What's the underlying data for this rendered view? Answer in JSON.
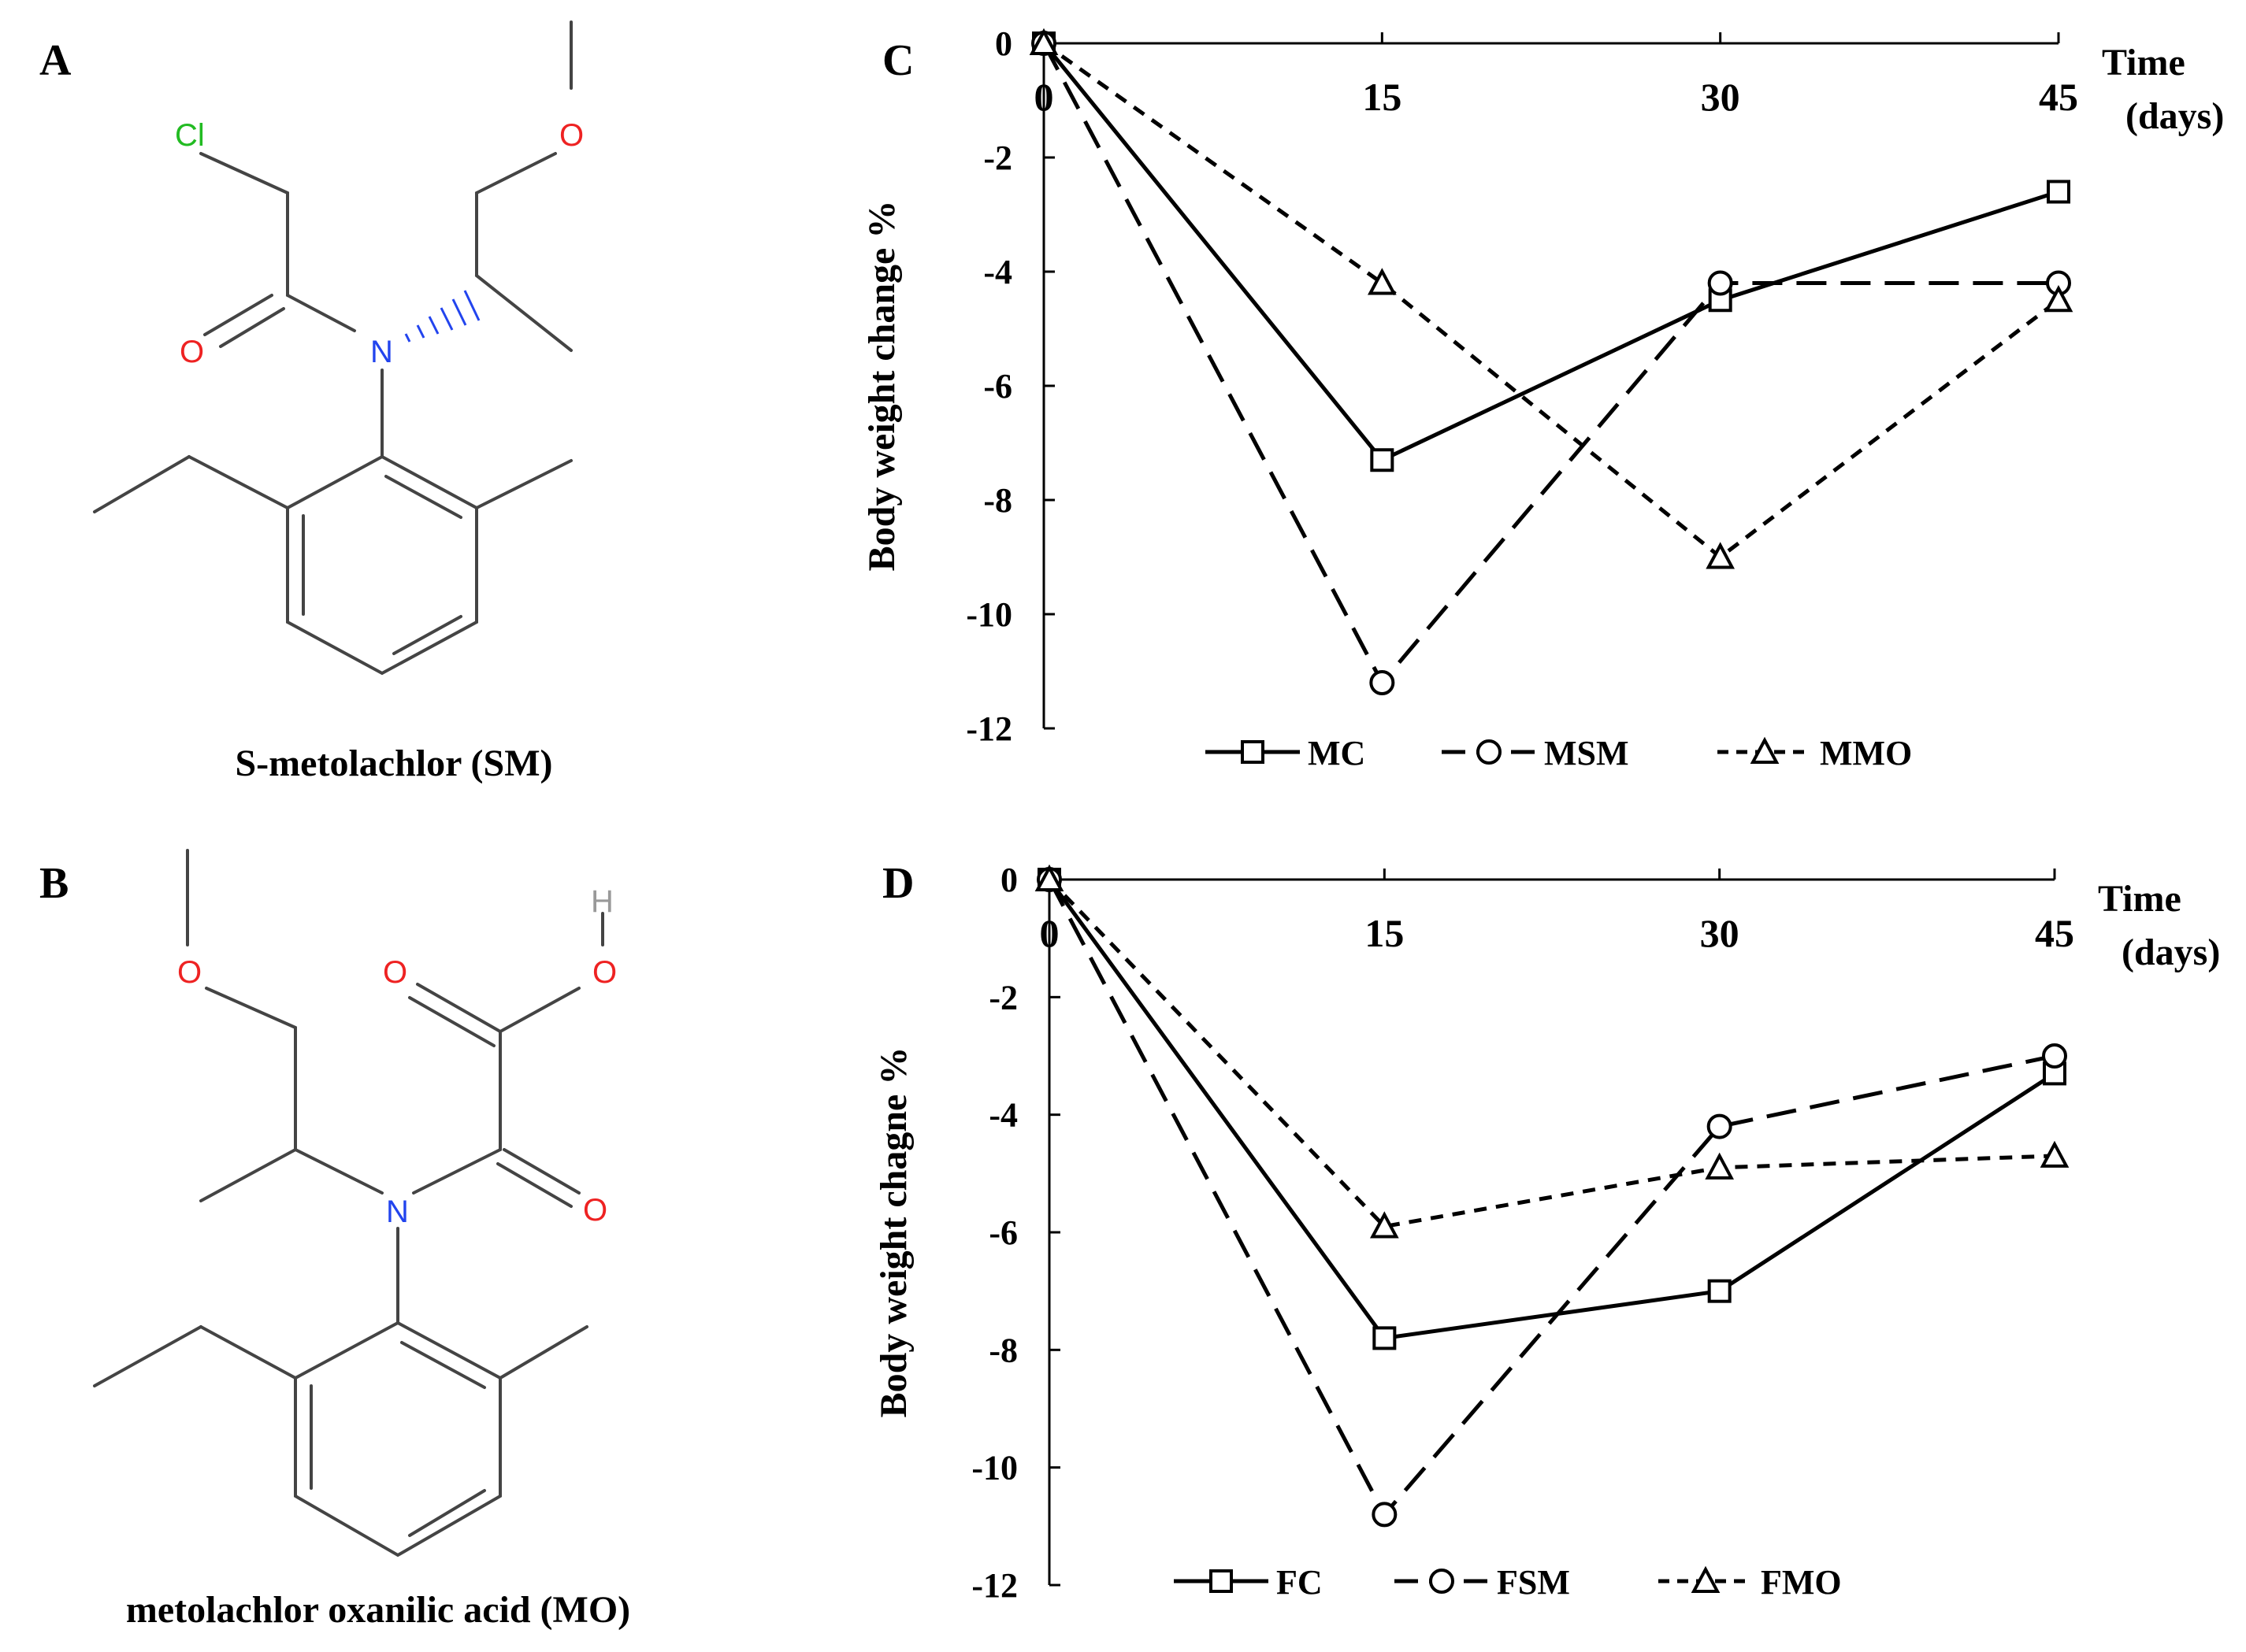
{
  "panels": {
    "a": {
      "letter": "A",
      "caption": "S-metolachlor (SM)",
      "atoms": {
        "cl": "Cl",
        "o_methoxy": "O",
        "o_carbonyl": "O",
        "n": "N"
      }
    },
    "b": {
      "letter": "B",
      "caption": "metolachlor oxanilic acid (MO)",
      "atoms": {
        "h": "H",
        "o_methoxy": "O",
        "o_acid_double": "O",
        "o_acid_hydroxyl": "O",
        "o_amide": "O",
        "n": "N"
      }
    },
    "c": {
      "letter": "C"
    },
    "d": {
      "letter": "D"
    }
  },
  "colors": {
    "chlorine": "#22bb22",
    "oxygen": "#ee2222",
    "nitrogen": "#2244ee",
    "hydrogen": "#999999",
    "bond": "#444444",
    "axis": "#000000"
  },
  "chart_data": [
    {
      "id": "C",
      "type": "line",
      "xlabel_line1": "Time",
      "xlabel_line2": "(days)",
      "ylabel": "Body weight change %",
      "x": [
        0,
        15,
        30,
        45
      ],
      "xlim": [
        0,
        45
      ],
      "ylim": [
        -12,
        0
      ],
      "yticks": [
        0,
        -2,
        -4,
        -6,
        -8,
        -10,
        -12
      ],
      "legend_position": "bottom",
      "series": [
        {
          "name": "MC",
          "marker": "square",
          "dash": "solid",
          "values": [
            0,
            -7.3,
            -4.5,
            -2.6
          ]
        },
        {
          "name": "MSM",
          "marker": "circle",
          "dash": "long-dash",
          "values": [
            0,
            -11.2,
            -4.2,
            -4.2
          ]
        },
        {
          "name": "MMO",
          "marker": "triangle",
          "dash": "short-dash",
          "values": [
            0,
            -4.2,
            -9.0,
            -4.5
          ]
        }
      ]
    },
    {
      "id": "D",
      "type": "line",
      "xlabel_line1": "Time",
      "xlabel_line2": "(days)",
      "ylabel": "Body weight chagne %",
      "x": [
        0,
        15,
        30,
        45
      ],
      "xlim": [
        0,
        45
      ],
      "ylim": [
        -12,
        0
      ],
      "yticks": [
        0,
        -2,
        -4,
        -6,
        -8,
        -10,
        -12
      ],
      "legend_position": "bottom",
      "series": [
        {
          "name": "FC",
          "marker": "square",
          "dash": "solid",
          "values": [
            0,
            -7.8,
            -7.0,
            -3.3
          ]
        },
        {
          "name": "FSM",
          "marker": "circle",
          "dash": "long-dash",
          "values": [
            0,
            -10.8,
            -4.2,
            -3.0
          ]
        },
        {
          "name": "FMO",
          "marker": "triangle",
          "dash": "short-dash",
          "values": [
            0,
            -5.9,
            -4.9,
            -4.7
          ]
        }
      ]
    }
  ]
}
